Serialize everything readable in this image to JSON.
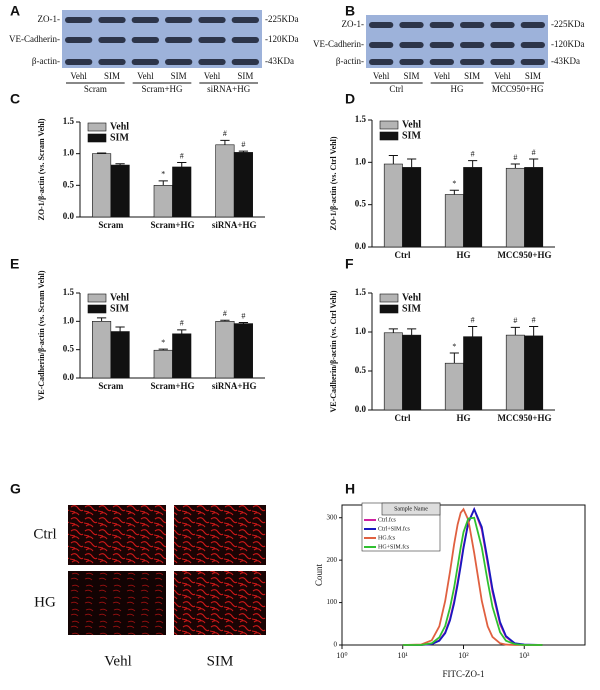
{
  "panel_labels": [
    "A",
    "B",
    "C",
    "D",
    "E",
    "F",
    "G",
    "H"
  ],
  "blots": [
    {
      "row_labels": [
        "ZO-1-",
        "VE-Cadherin-",
        "β-actin-"
      ],
      "size_labels": [
        "-225KDa",
        "-120KDa",
        "-43KDa"
      ],
      "lane_labels": [
        "Vehl",
        "SIM",
        "Vehl",
        "SIM",
        "Vehl",
        "SIM"
      ],
      "group_labels": [
        "Scram",
        "Scram+HG",
        "siRNA+HG"
      ]
    },
    {
      "row_labels": [
        "ZO-1-",
        "VE-Cadherin-",
        "β-actin-"
      ],
      "size_labels": [
        "-225KDa",
        "-120KDa",
        "-43KDa"
      ],
      "lane_labels": [
        "Vehl",
        "SIM",
        "Vehl",
        "SIM",
        "Vehl",
        "SIM"
      ],
      "group_labels": [
        "Ctrl",
        "HG",
        "MCC950+HG"
      ]
    }
  ],
  "microscopy": {
    "row_labels": [
      "Ctrl",
      "HG"
    ],
    "col_labels": [
      "Vehl",
      "SIM"
    ]
  },
  "chart_data": [
    {
      "type": "bar",
      "ylabel": "ZO-1/β-actin (vs. Scram Vehl)",
      "categories": [
        "Scram",
        "Scram+HG",
        "siRNA+HG"
      ],
      "series": [
        {
          "name": "Vehl",
          "color": "#b4b4b4",
          "values": [
            1.0,
            0.5,
            1.14
          ],
          "errors": [
            0.01,
            0.07,
            0.07
          ],
          "annotations": [
            null,
            "*",
            "#"
          ]
        },
        {
          "name": "SIM",
          "color": "#111111",
          "values": [
            0.82,
            0.79,
            1.02
          ],
          "errors": [
            0.02,
            0.07,
            0.02
          ],
          "annotations": [
            null,
            "#",
            "#"
          ]
        }
      ],
      "ylim": [
        0,
        1.5
      ],
      "yticks": [
        {
          "value": 0,
          "label": "0.0"
        },
        0.5,
        {
          "value": 1,
          "label": "1.0"
        },
        1.5
      ],
      "legend": "upper left"
    },
    {
      "type": "bar",
      "ylabel": "ZO-1/β-actin (vs. Ctrl Vehl)",
      "categories": [
        "Ctrl",
        "HG",
        "MCC950+HG"
      ],
      "series": [
        {
          "name": "Vehl",
          "color": "#b4b4b4",
          "values": [
            0.98,
            0.62,
            0.93
          ],
          "errors": [
            0.1,
            0.05,
            0.05
          ],
          "annotations": [
            null,
            "*",
            "#"
          ]
        },
        {
          "name": "SIM",
          "color": "#111111",
          "values": [
            0.94,
            0.94,
            0.94
          ],
          "errors": [
            0.1,
            0.08,
            0.1
          ],
          "annotations": [
            null,
            "#",
            "#"
          ]
        }
      ],
      "ylim": [
        0,
        1.5
      ],
      "yticks": [
        {
          "value": 0,
          "label": "0.0"
        },
        0.5,
        {
          "value": 1,
          "label": "1.0"
        },
        1.5
      ],
      "legend": "upper left"
    },
    {
      "type": "bar",
      "ylabel": "VE-Cadherin/β-actin (vs. Scram Vehl)",
      "categories": [
        "Scram",
        "Scram+HG",
        "siRNA+HG"
      ],
      "series": [
        {
          "name": "Vehl",
          "color": "#b4b4b4",
          "values": [
            1.0,
            0.49,
            1.0
          ],
          "errors": [
            0.06,
            0.02,
            0.02
          ],
          "annotations": [
            null,
            "*",
            "#"
          ]
        },
        {
          "name": "SIM",
          "color": "#111111",
          "values": [
            0.82,
            0.78,
            0.96
          ],
          "errors": [
            0.08,
            0.07,
            0.02
          ],
          "annotations": [
            null,
            "#",
            "#"
          ]
        }
      ],
      "ylim": [
        0,
        1.5
      ],
      "yticks": [
        {
          "value": 0,
          "label": "0.0"
        },
        0.5,
        {
          "value": 1,
          "label": "1.0"
        },
        1.5
      ],
      "legend": "upper left"
    },
    {
      "type": "bar",
      "ylabel": "VE-Cadherin/β-actin (vs. Ctrl Vehl)",
      "categories": [
        "Ctrl",
        "HG",
        "MCC950+HG"
      ],
      "series": [
        {
          "name": "Vehl",
          "color": "#b4b4b4",
          "values": [
            0.99,
            0.6,
            0.96
          ],
          "errors": [
            0.05,
            0.13,
            0.1
          ],
          "annotations": [
            null,
            "*",
            "#"
          ]
        },
        {
          "name": "SIM",
          "color": "#111111",
          "values": [
            0.96,
            0.94,
            0.95
          ],
          "errors": [
            0.08,
            0.13,
            0.12
          ],
          "annotations": [
            null,
            "#",
            "#"
          ]
        }
      ],
      "ylim": [
        0,
        1.5
      ],
      "yticks": [
        {
          "value": 0,
          "label": "0.0"
        },
        0.5,
        {
          "value": 1,
          "label": "1.0"
        },
        1.5
      ],
      "legend": "upper left"
    },
    {
      "type": "line",
      "xlabel": "FITC-ZO-1",
      "ylabel": "Count",
      "xscale": "log",
      "legend_title": "Sample Name",
      "x": [
        10,
        20,
        30,
        40,
        50,
        60,
        70,
        80,
        90,
        100,
        120,
        150,
        200,
        250,
        300,
        400,
        500,
        700,
        1000,
        2000
      ],
      "series": [
        {
          "name": "Ctrl.fcs",
          "color": "#d020a0",
          "values": [
            0,
            0,
            2,
            11,
            30,
            62,
            103,
            148,
            192,
            232,
            290,
            320,
            272,
            192,
            125,
            49,
            19,
            3,
            0,
            0
          ]
        },
        {
          "name": "Ctrl+SIM.fcs",
          "color": "#1818c0",
          "values": [
            0,
            0,
            2,
            10,
            28,
            58,
            98,
            142,
            186,
            228,
            288,
            320,
            278,
            200,
            132,
            54,
            21,
            4,
            1,
            0
          ]
        },
        {
          "name": "HG.fcs",
          "color": "#e06040",
          "values": [
            0,
            1,
            11,
            44,
            104,
            173,
            237,
            284,
            312,
            320,
            295,
            217,
            104,
            44,
            19,
            4,
            1,
            0,
            0,
            0
          ]
        },
        {
          "name": "HG+SIM.fcs",
          "color": "#30c030",
          "values": [
            0,
            0,
            4,
            18,
            45,
            88,
            135,
            185,
            230,
            266,
            298,
            300,
            230,
            150,
            90,
            30,
            10,
            2,
            0,
            0
          ]
        }
      ],
      "xlim": [
        1,
        10000
      ],
      "xticks": [
        {
          "value": 1,
          "label": "10⁰"
        },
        {
          "value": 10,
          "label": "10¹"
        },
        {
          "value": 100,
          "label": "10²"
        },
        {
          "value": 1000,
          "label": "10³"
        }
      ],
      "ylim": [
        0,
        330
      ],
      "yticks": [
        0,
        100,
        200,
        300
      ]
    }
  ]
}
